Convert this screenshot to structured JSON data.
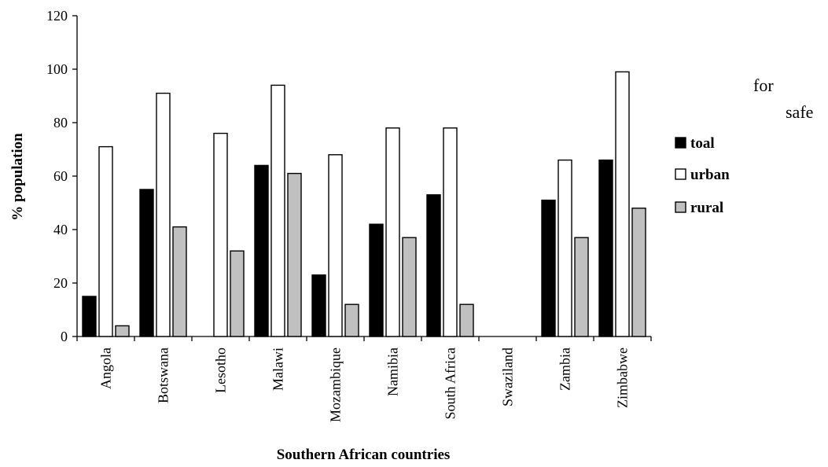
{
  "side_text": [
    "for",
    "safe"
  ],
  "chart_data": {
    "type": "bar",
    "title": "",
    "xlabel": "Southern African countries",
    "ylabel": "% population",
    "ylim": [
      0,
      120
    ],
    "yticks": [
      "0",
      "20",
      "40",
      "60",
      "80",
      "100",
      "120"
    ],
    "grid": false,
    "legend_position": "right",
    "categories": [
      "Angola",
      "Botswana",
      "Lesotho",
      "Malawi",
      "Mozambique",
      "Namibia",
      "South Africa",
      "Swaziland",
      "Zambia",
      "Zimbabwe"
    ],
    "series": [
      {
        "name": "toal",
        "color": "#000000",
        "values": [
          15,
          55,
          0,
          64,
          23,
          42,
          53,
          0,
          51,
          66
        ]
      },
      {
        "name": "urban",
        "color": "#ffffff",
        "values": [
          71,
          91,
          76,
          94,
          68,
          78,
          78,
          0,
          66,
          99
        ]
      },
      {
        "name": "rural",
        "color": "#c0c0c0",
        "values": [
          4,
          41,
          32,
          61,
          12,
          37,
          12,
          0,
          37,
          48
        ]
      }
    ]
  }
}
